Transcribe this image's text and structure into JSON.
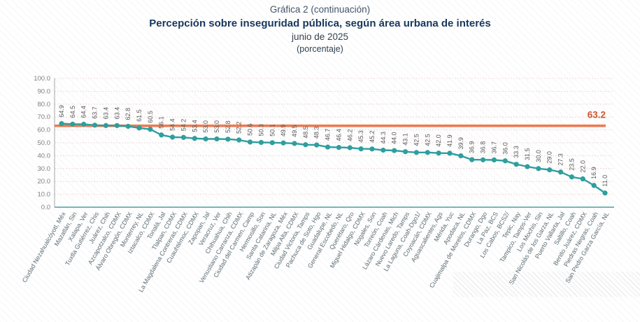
{
  "title": {
    "line1": "Gráfica 2 (continuación)",
    "line2": "Percepción sobre inseguridad pública, según área urbana de interés",
    "line3": "junio de 2025",
    "line4": "(porcentaje)"
  },
  "chart_data": {
    "type": "line",
    "title": "Percepción sobre inseguridad pública, según área urbana de interés",
    "subtitle": "junio de 2025 (porcentaje)",
    "xlabel": "",
    "ylabel": "",
    "ylim": [
      0,
      100
    ],
    "ytick_step": 10,
    "ytick_labels": [
      "0.0",
      "10.0",
      "20.0",
      "30.0",
      "40.0",
      "50.0",
      "60.0",
      "70.0",
      "80.0",
      "90.0",
      "100.0"
    ],
    "grid": true,
    "legend": "none",
    "line_color": "#2f9e9e",
    "marker_color": "#2f9e9e",
    "value_label_color": "#595959",
    "city_label_color": "#5d6d74",
    "ytick_color": "#7f7f7f",
    "gridline_color": "#edd0d0",
    "vgridline_color": "#e9e9e9",
    "xaxis_color": "#4aa0a0",
    "yaxis_color": "#a6a6a6",
    "reference_line": {
      "value": 63.2,
      "label": "63.2",
      "line_color": "#ed7a50",
      "label_color": "#d0552e"
    },
    "categories": [
      "Ciudad Nezahualcóyotl, Méx",
      "Mazatlán, Sin",
      "Xalapa, Ver",
      "Tuxtla Gutiérrez, Chis",
      "Juárez, Chih",
      "Azcapotzalco, CDMX",
      "Álvaro Obregón, CDMX",
      "Monterrey, NL",
      "Iztacalco, CDMX",
      "Tonalá, Jal",
      "Tlalpan, CDMX",
      "La Magdalena Contreras, CDMX",
      "Cuauhtémoc, CDMX",
      "Zapopan, Jal",
      "Veracruz, Ver",
      "Chihuahua, Chih",
      "Venustiano Carranza, CDMX",
      "Ciudad del Carmen, Camp",
      "Hermosillo, Son",
      "Santa Catarina, NL",
      "Atizapán de Zaragoza, Méx",
      "Milpa Alta, CDMX",
      "Ciudad Victoria, Tamps",
      "Pachuca de Soto, Hgo",
      "Guadalupe, NL",
      "General Escobedo, NL",
      "Querétaro, Qro",
      "Miguel Hidalgo, CDMX",
      "Nogales, Son",
      "Torreón, Coah",
      "Lázaro Cárdenas, Mich",
      "Nuevo Laredo, Tamps",
      "La Laguna, Coah-Dgo1/",
      "Coyoacán, CDMX",
      "Aguascalientes, Ags",
      "Mérida, Yuc",
      "Apodaca, NL",
      "Cuajimalpa de Morelos, CDMX",
      "Durango, Dgo",
      "La Paz, BCS",
      "Los Cabos, BCS2/",
      "Tepic, Nay",
      "Tampico, Tamps-Ver",
      "Los Mochis, Sin",
      "San Nicolás de los Garza, NL",
      "Puerto Vallarta, Jal",
      "Saltillo, Coah",
      "Benito Juárez, CDMX",
      "Piedras Negras, Coah",
      "San Pedro Garza García, NL"
    ],
    "values": [
      64.9,
      64.5,
      64.4,
      63.7,
      63.4,
      63.4,
      62.8,
      61.5,
      60.5,
      56.1,
      54.4,
      54.2,
      53.4,
      53.0,
      53.0,
      52.8,
      52.2,
      50.6,
      50.3,
      50.1,
      49.9,
      49.5,
      48.5,
      48.3,
      46.7,
      46.4,
      46.2,
      45.3,
      45.2,
      44.3,
      44.0,
      43.1,
      42.5,
      42.5,
      42.0,
      41.9,
      39.9,
      36.9,
      36.8,
      36.7,
      36.0,
      33.3,
      31.5,
      30.0,
      29.0,
      27.3,
      23.5,
      22.0,
      16.9,
      11.0
    ]
  }
}
